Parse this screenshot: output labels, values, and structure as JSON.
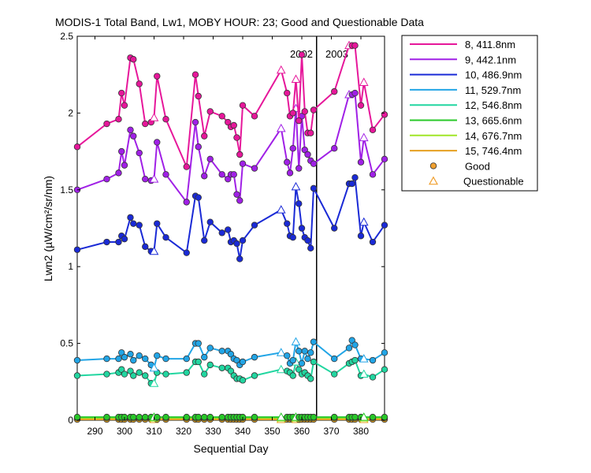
{
  "chart_data": {
    "type": "line",
    "title": "MODIS-1 Total Band, Lw1, MOBY HOUR: 23;  Good and Questionable Data",
    "xlabel": "Sequential Day",
    "ylabel": "Lwn2 (µW/cm²/sr/nm)",
    "xlim": [
      284,
      388
    ],
    "ylim": [
      0,
      2.5
    ],
    "xticks": [
      290,
      300,
      310,
      320,
      330,
      340,
      350,
      360,
      370,
      380
    ],
    "yticks": [
      0,
      0.5,
      1,
      1.5,
      2,
      2.5
    ],
    "year_divider_x": 365,
    "year_labels": [
      {
        "text": "2002",
        "x": 356
      },
      {
        "text": "2003",
        "x": 368
      }
    ],
    "x": [
      284,
      294,
      298,
      299,
      300,
      302,
      303,
      305,
      307,
      309,
      310,
      311,
      314,
      321,
      324,
      325,
      327,
      329,
      333,
      335,
      336,
      337,
      338,
      339,
      340,
      344,
      353,
      355,
      356,
      357,
      358,
      359,
      360,
      361,
      362,
      363,
      364,
      371,
      376,
      377,
      378,
      380,
      381,
      384,
      388
    ],
    "series": [
      {
        "name": "8, 411.8nm",
        "color": "#e6179a",
        "values": [
          1.78,
          1.93,
          1.96,
          2.13,
          2.05,
          2.36,
          2.35,
          2.19,
          1.93,
          1.94,
          1.97,
          2.24,
          1.96,
          1.65,
          2.25,
          2.11,
          1.85,
          2.01,
          1.98,
          1.94,
          1.91,
          1.92,
          1.84,
          1.73,
          2.05,
          1.98,
          2.28,
          2.13,
          1.98,
          2.0,
          2.22,
          1.95,
          2.38,
          2.01,
          1.87,
          1.87,
          2.02,
          2.14,
          2.44,
          2.44,
          2.44,
          2.05,
          2.2,
          1.89,
          1.99
        ],
        "questionable": [
          false,
          false,
          false,
          false,
          false,
          false,
          false,
          false,
          false,
          false,
          true,
          false,
          false,
          false,
          false,
          false,
          false,
          false,
          false,
          false,
          false,
          false,
          false,
          false,
          false,
          false,
          true,
          false,
          false,
          false,
          true,
          false,
          false,
          false,
          false,
          false,
          false,
          false,
          true,
          false,
          false,
          false,
          true,
          false,
          false
        ]
      },
      {
        "name": "9, 442.1nm",
        "color": "#a020e6",
        "values": [
          1.5,
          1.57,
          1.61,
          1.75,
          1.66,
          1.89,
          1.85,
          1.74,
          1.57,
          1.56,
          1.57,
          1.81,
          1.6,
          1.42,
          1.94,
          1.78,
          1.59,
          1.7,
          1.6,
          1.57,
          1.6,
          1.6,
          1.47,
          1.43,
          1.67,
          1.64,
          1.9,
          1.68,
          1.61,
          1.77,
          2.03,
          1.64,
          1.98,
          1.76,
          1.73,
          1.69,
          1.67,
          1.77,
          2.12,
          2.12,
          2.13,
          1.68,
          1.84,
          1.6,
          1.7
        ],
        "questionable": [
          false,
          false,
          false,
          false,
          false,
          false,
          false,
          false,
          false,
          false,
          true,
          false,
          false,
          false,
          false,
          false,
          false,
          false,
          false,
          false,
          false,
          false,
          false,
          false,
          false,
          false,
          true,
          false,
          false,
          false,
          true,
          false,
          false,
          false,
          false,
          false,
          false,
          false,
          true,
          false,
          false,
          false,
          true,
          false,
          false
        ]
      },
      {
        "name": "10, 486.9nm",
        "color": "#1a2ad6",
        "values": [
          1.11,
          1.16,
          1.16,
          1.2,
          1.18,
          1.32,
          1.28,
          1.27,
          1.13,
          1.1,
          1.1,
          1.28,
          1.19,
          1.09,
          1.46,
          1.45,
          1.17,
          1.29,
          1.22,
          1.24,
          1.16,
          1.17,
          1.15,
          1.05,
          1.17,
          1.27,
          1.37,
          1.28,
          1.2,
          1.19,
          1.52,
          1.41,
          1.25,
          1.19,
          1.17,
          1.12,
          1.51,
          1.25,
          1.54,
          1.54,
          1.58,
          1.2,
          1.29,
          1.16,
          1.27
        ],
        "questionable": [
          false,
          false,
          false,
          false,
          false,
          false,
          false,
          false,
          false,
          false,
          true,
          false,
          false,
          false,
          false,
          false,
          false,
          false,
          false,
          false,
          false,
          false,
          false,
          false,
          false,
          false,
          true,
          false,
          false,
          false,
          true,
          false,
          false,
          false,
          false,
          false,
          false,
          false,
          false,
          false,
          false,
          false,
          true,
          false,
          false
        ]
      },
      {
        "name": "11, 529.7nm",
        "color": "#22a5e6",
        "values": [
          0.39,
          0.4,
          0.4,
          0.44,
          0.41,
          0.43,
          0.39,
          0.42,
          0.4,
          0.36,
          0.34,
          0.42,
          0.4,
          0.4,
          0.5,
          0.5,
          0.41,
          0.47,
          0.45,
          0.45,
          0.43,
          0.4,
          0.39,
          0.36,
          0.38,
          0.41,
          0.44,
          0.42,
          0.37,
          0.39,
          0.51,
          0.45,
          0.37,
          0.45,
          0.4,
          0.44,
          0.51,
          0.4,
          0.47,
          0.52,
          0.49,
          0.4,
          0.4,
          0.39,
          0.44
        ],
        "questionable": [
          false,
          false,
          false,
          false,
          false,
          false,
          false,
          false,
          false,
          false,
          true,
          false,
          false,
          false,
          false,
          false,
          false,
          false,
          false,
          false,
          false,
          false,
          false,
          false,
          false,
          false,
          true,
          false,
          false,
          false,
          true,
          false,
          false,
          false,
          false,
          false,
          false,
          false,
          false,
          false,
          false,
          false,
          true,
          false,
          false
        ]
      },
      {
        "name": "12, 546.8nm",
        "color": "#22d6a0",
        "values": [
          0.29,
          0.3,
          0.31,
          0.33,
          0.3,
          0.32,
          0.29,
          0.31,
          0.29,
          0.24,
          0.24,
          0.31,
          0.3,
          0.31,
          0.38,
          0.38,
          0.3,
          0.36,
          0.34,
          0.34,
          0.32,
          0.29,
          0.27,
          0.27,
          0.26,
          0.29,
          0.33,
          0.32,
          0.31,
          0.29,
          0.38,
          0.33,
          0.3,
          0.31,
          0.29,
          0.27,
          0.38,
          0.3,
          0.37,
          0.38,
          0.39,
          0.29,
          0.3,
          0.28,
          0.33
        ],
        "questionable": [
          false,
          false,
          false,
          false,
          false,
          false,
          false,
          false,
          false,
          false,
          true,
          false,
          false,
          false,
          false,
          false,
          false,
          false,
          false,
          false,
          false,
          false,
          false,
          false,
          false,
          false,
          true,
          false,
          false,
          false,
          true,
          false,
          false,
          false,
          false,
          false,
          false,
          false,
          false,
          false,
          false,
          false,
          true,
          false,
          false
        ]
      },
      {
        "name": "13, 665.6nm",
        "color": "#28c828",
        "values": [
          0.02,
          0.02,
          0.02,
          0.02,
          0.02,
          0.02,
          0.02,
          0.02,
          0.02,
          0.02,
          0.02,
          0.02,
          0.02,
          0.02,
          0.02,
          0.02,
          0.02,
          0.02,
          0.02,
          0.02,
          0.02,
          0.02,
          0.02,
          0.02,
          0.02,
          0.02,
          0.02,
          0.02,
          0.02,
          0.02,
          0.02,
          0.02,
          0.02,
          0.02,
          0.02,
          0.02,
          0.02,
          0.02,
          0.02,
          0.02,
          0.02,
          0.02,
          0.02,
          0.02,
          0.02
        ],
        "questionable": [
          false,
          false,
          false,
          false,
          false,
          false,
          false,
          false,
          false,
          false,
          true,
          false,
          false,
          false,
          false,
          false,
          false,
          false,
          false,
          false,
          false,
          false,
          false,
          false,
          false,
          false,
          true,
          false,
          false,
          false,
          true,
          false,
          false,
          false,
          false,
          false,
          false,
          false,
          false,
          false,
          false,
          false,
          true,
          false,
          false
        ]
      },
      {
        "name": "14, 676.7nm",
        "color": "#a0e628",
        "values": [
          0.015,
          0.015,
          0.015,
          0.015,
          0.015,
          0.015,
          0.015,
          0.015,
          0.015,
          0.015,
          0.015,
          0.015,
          0.015,
          0.015,
          0.015,
          0.015,
          0.015,
          0.015,
          0.015,
          0.015,
          0.015,
          0.015,
          0.015,
          0.015,
          0.015,
          0.015,
          0.015,
          0.015,
          0.015,
          0.015,
          0.015,
          0.015,
          0.015,
          0.015,
          0.015,
          0.015,
          0.015,
          0.015,
          0.015,
          0.015,
          0.015,
          0.015,
          0.015,
          0.015,
          0.015
        ],
        "questionable": [
          false,
          false,
          false,
          false,
          false,
          false,
          false,
          false,
          false,
          false,
          true,
          false,
          false,
          false,
          false,
          false,
          false,
          false,
          false,
          false,
          false,
          false,
          false,
          false,
          false,
          false,
          true,
          false,
          false,
          false,
          true,
          false,
          false,
          false,
          false,
          false,
          false,
          false,
          false,
          false,
          false,
          false,
          true,
          false,
          false
        ]
      },
      {
        "name": "15, 746.4nm",
        "color": "#e6a020",
        "values": [
          0.005,
          0.005,
          0.005,
          0.005,
          0.005,
          0.005,
          0.005,
          0.005,
          0.005,
          0.005,
          0.005,
          0.005,
          0.005,
          0.005,
          0.005,
          0.005,
          0.005,
          0.005,
          0.005,
          0.005,
          0.005,
          0.005,
          0.005,
          0.005,
          0.005,
          0.005,
          0.005,
          0.005,
          0.005,
          0.005,
          0.005,
          0.005,
          0.005,
          0.005,
          0.005,
          0.005,
          0.005,
          0.005,
          0.005,
          0.005,
          0.005,
          0.005,
          0.005,
          0.005,
          0.005
        ],
        "questionable": [
          false,
          false,
          false,
          false,
          false,
          false,
          false,
          false,
          false,
          false,
          true,
          false,
          false,
          false,
          false,
          false,
          false,
          false,
          false,
          false,
          false,
          false,
          false,
          false,
          false,
          false,
          true,
          false,
          false,
          false,
          true,
          false,
          false,
          false,
          false,
          false,
          false,
          false,
          false,
          false,
          false,
          false,
          true,
          false,
          false
        ]
      }
    ],
    "legend": {
      "placement": "right",
      "good_label": "Good",
      "questionable_label": "Questionable",
      "good_color": "#f0a030",
      "questionable_color": "#f0a030"
    }
  }
}
